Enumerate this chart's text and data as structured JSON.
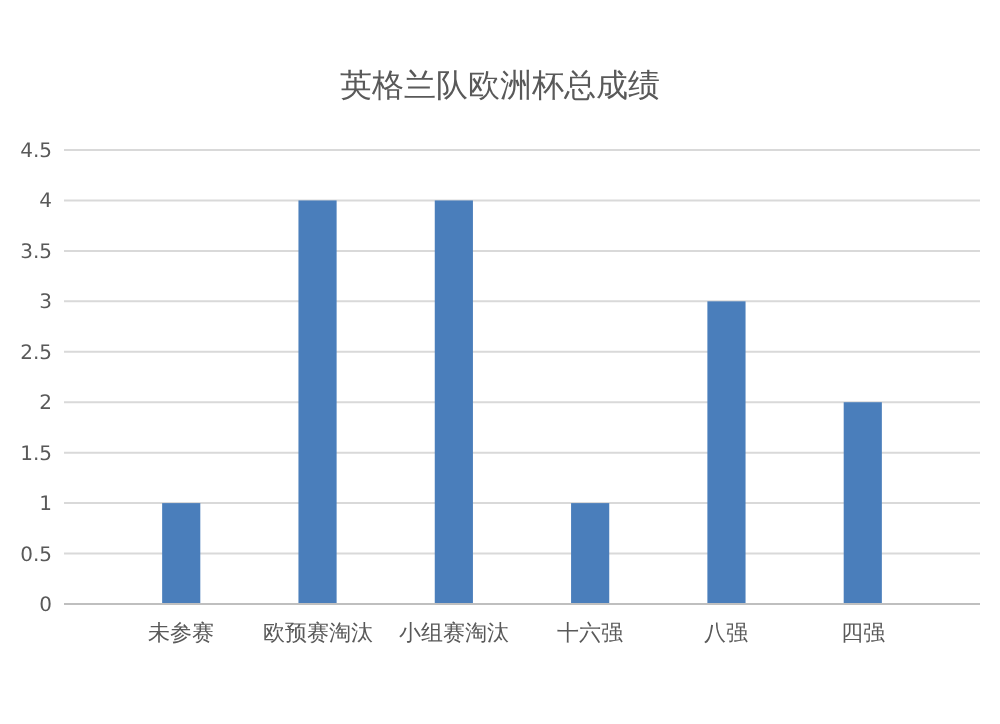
{
  "chart_data": {
    "type": "bar",
    "title": "英格兰队欧洲杯总成绩",
    "categories": [
      "未参赛",
      "欧预赛淘汰",
      "小组赛淘汰",
      "十六强",
      "八强",
      "四强"
    ],
    "values": [
      1,
      4,
      4,
      1,
      3,
      2
    ],
    "color": "#4a7ebb",
    "ylim": [
      0,
      4.5
    ],
    "yticks": [
      0,
      0.5,
      1,
      1.5,
      2,
      2.5,
      3,
      3.5,
      4,
      4.5
    ],
    "grid": true
  }
}
